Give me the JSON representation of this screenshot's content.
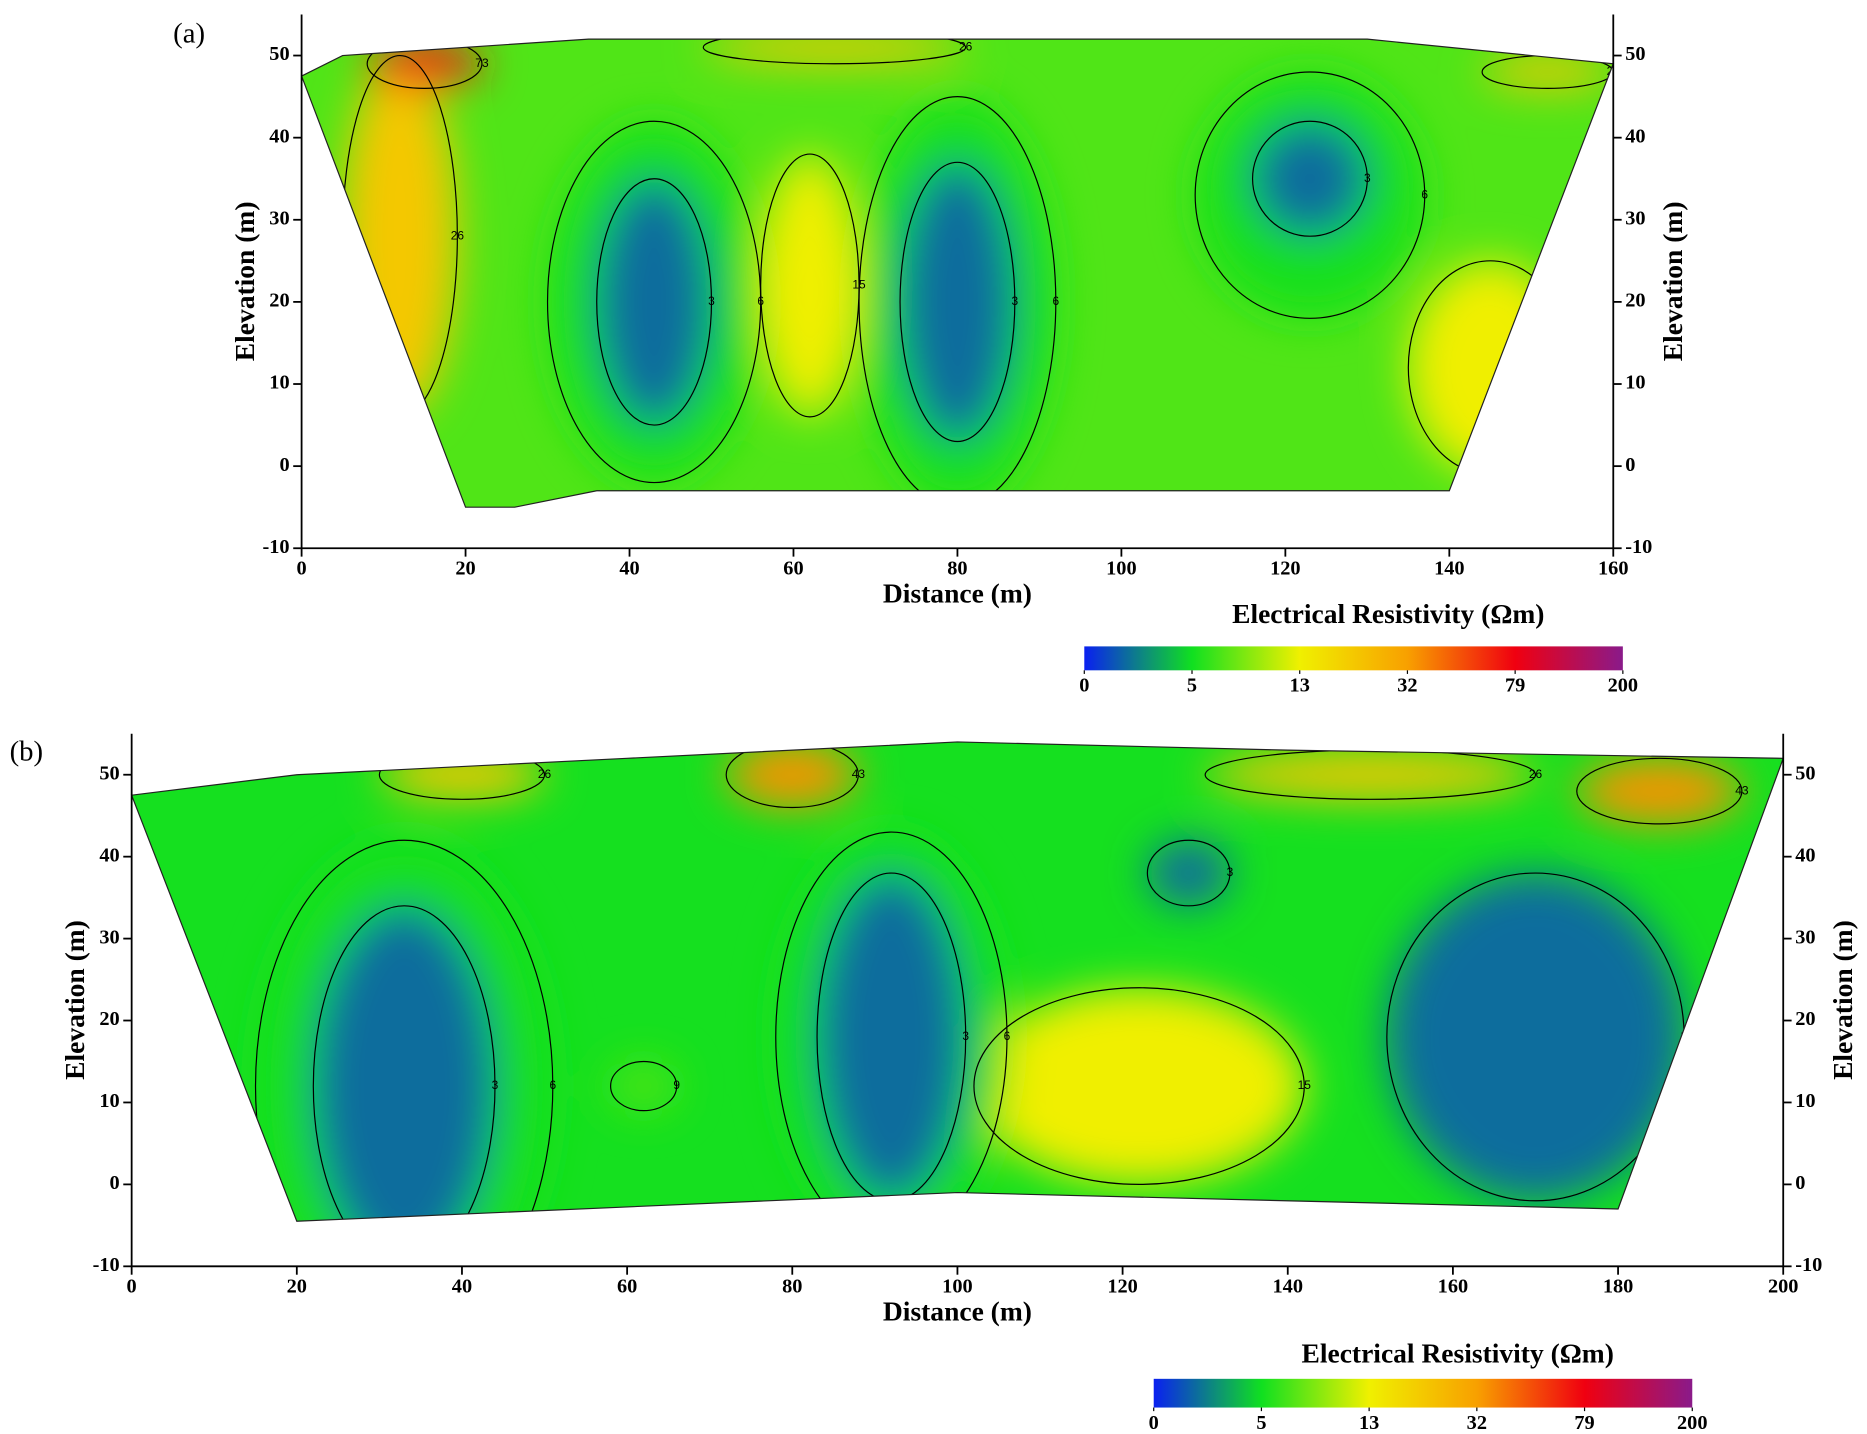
{
  "chart_data": [
    {
      "type": "contour",
      "panel": "(a)",
      "x_label": "Distance (m)",
      "y_label": "Elevation (m)",
      "xlim": [
        0,
        160
      ],
      "xticks": [
        0,
        20,
        40,
        60,
        80,
        100,
        120,
        140,
        160
      ],
      "ylim": [
        -10,
        55
      ],
      "yticks": [
        -10,
        0,
        10,
        20,
        30,
        40,
        50
      ],
      "outline": {
        "x": [
          0,
          5,
          35,
          95,
          130,
          160,
          140,
          36,
          26,
          20
        ],
        "y": [
          47.5,
          50,
          52,
          52,
          52,
          49,
          -3,
          -3,
          -5,
          -5
        ]
      },
      "base_level": 9,
      "blobs": [
        {
          "x": 12,
          "y": 28,
          "rx": 7,
          "ry": 22,
          "level": 26
        },
        {
          "x": 15,
          "y": 49,
          "rx": 7,
          "ry": 3,
          "level": 73
        },
        {
          "x": 65,
          "y": 51,
          "rx": 16,
          "ry": 2,
          "level": 26
        },
        {
          "x": 152,
          "y": 48,
          "rx": 8,
          "ry": 2,
          "level": 26
        },
        {
          "x": 145,
          "y": 12,
          "rx": 10,
          "ry": 13,
          "level": 15
        },
        {
          "x": 62,
          "y": 22,
          "rx": 6,
          "ry": 16,
          "level": 15
        },
        {
          "x": 43,
          "y": 20,
          "rx": 13,
          "ry": 22,
          "level": 6
        },
        {
          "x": 80,
          "y": 20,
          "rx": 12,
          "ry": 25,
          "level": 6
        },
        {
          "x": 123,
          "y": 33,
          "rx": 14,
          "ry": 15,
          "level": 6
        },
        {
          "x": 43,
          "y": 20,
          "rx": 7,
          "ry": 15,
          "level": 3
        },
        {
          "x": 80,
          "y": 20,
          "rx": 7,
          "ry": 17,
          "level": 3
        },
        {
          "x": 123,
          "y": 35,
          "rx": 7,
          "ry": 7,
          "level": 3
        }
      ],
      "colorbar": {
        "title": "Electrical Resistivity (Ωm)",
        "ticks": [
          0,
          5,
          13,
          32,
          79,
          200
        ],
        "colors": [
          "#0a20f0",
          "#10e020",
          "#f0f000",
          "#f8a000",
          "#f00010",
          "#8a1a8a"
        ]
      }
    },
    {
      "type": "contour",
      "panel": "(b)",
      "x_label": "Distance (m)",
      "y_label": "Elevation (m)",
      "xlim": [
        0,
        200
      ],
      "xticks": [
        0,
        20,
        40,
        60,
        80,
        100,
        120,
        140,
        160,
        180,
        200
      ],
      "ylim": [
        -10,
        55
      ],
      "yticks": [
        -10,
        0,
        10,
        20,
        30,
        40,
        50
      ],
      "outline": {
        "x": [
          0,
          20,
          60,
          100,
          140,
          200,
          180,
          100,
          20
        ],
        "y": [
          47.5,
          50,
          52,
          54,
          53,
          52,
          -3,
          -1,
          -4.5
        ]
      },
      "base_level": 6,
      "blobs": [
        {
          "x": 40,
          "y": 50,
          "rx": 10,
          "ry": 3,
          "level": 26
        },
        {
          "x": 80,
          "y": 50,
          "rx": 8,
          "ry": 4,
          "level": 43
        },
        {
          "x": 150,
          "y": 50,
          "rx": 20,
          "ry": 3,
          "level": 26
        },
        {
          "x": 185,
          "y": 48,
          "rx": 10,
          "ry": 4,
          "level": 43
        },
        {
          "x": 122,
          "y": 12,
          "rx": 20,
          "ry": 12,
          "level": 15
        },
        {
          "x": 62,
          "y": 12,
          "rx": 4,
          "ry": 3,
          "level": 9
        },
        {
          "x": 33,
          "y": 12,
          "rx": 18,
          "ry": 30,
          "level": 6
        },
        {
          "x": 92,
          "y": 18,
          "rx": 14,
          "ry": 25,
          "level": 6
        },
        {
          "x": 33,
          "y": 12,
          "rx": 11,
          "ry": 22,
          "level": 3
        },
        {
          "x": 92,
          "y": 18,
          "rx": 9,
          "ry": 20,
          "level": 3
        },
        {
          "x": 170,
          "y": 18,
          "rx": 18,
          "ry": 20,
          "level": 3
        },
        {
          "x": 128,
          "y": 38,
          "rx": 5,
          "ry": 4,
          "level": 3
        }
      ],
      "colorbar": {
        "title": "Electrical Resistivity (Ωm)",
        "ticks": [
          0,
          5,
          13,
          32,
          79,
          200
        ],
        "colors": [
          "#0a20f0",
          "#10e020",
          "#f0f000",
          "#f8a000",
          "#f00010",
          "#8a1a8a"
        ]
      }
    }
  ]
}
